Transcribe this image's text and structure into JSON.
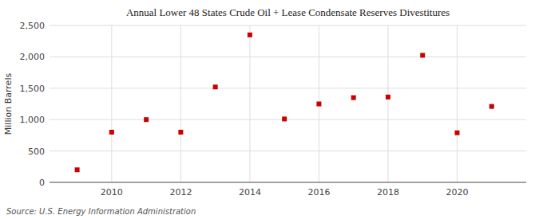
{
  "chart_data": {
    "type": "scatter",
    "title": "Annual Lower 48 States Crude Oil + Lease Condensate Reserves Divestitures",
    "y_label": "Million Barrels",
    "annotations": [
      "Source: U.S. Energy Information Administration"
    ],
    "x": [
      2009,
      2010,
      2011,
      2012,
      2013,
      2014,
      2015,
      2016,
      2017,
      2018,
      2019,
      2020,
      2021
    ],
    "values": [
      200,
      800,
      1000,
      800,
      1520,
      2350,
      1010,
      1250,
      1350,
      1360,
      2025,
      790,
      1210
    ],
    "color": "#cc0000",
    "marker": "square",
    "xlim": [
      2008.2,
      2022.0
    ],
    "xticks": [
      2010,
      2012,
      2014,
      2016,
      2018,
      2020
    ],
    "ylim": [
      0,
      2500
    ],
    "yticks": [
      0,
      500,
      {
        "value": 1000,
        "label": "1,000"
      },
      {
        "value": 1500,
        "label": "1,500"
      },
      {
        "value": 2000,
        "label": "2,000"
      },
      {
        "value": 2500,
        "label": "2,500"
      }
    ],
    "grid": true
  }
}
